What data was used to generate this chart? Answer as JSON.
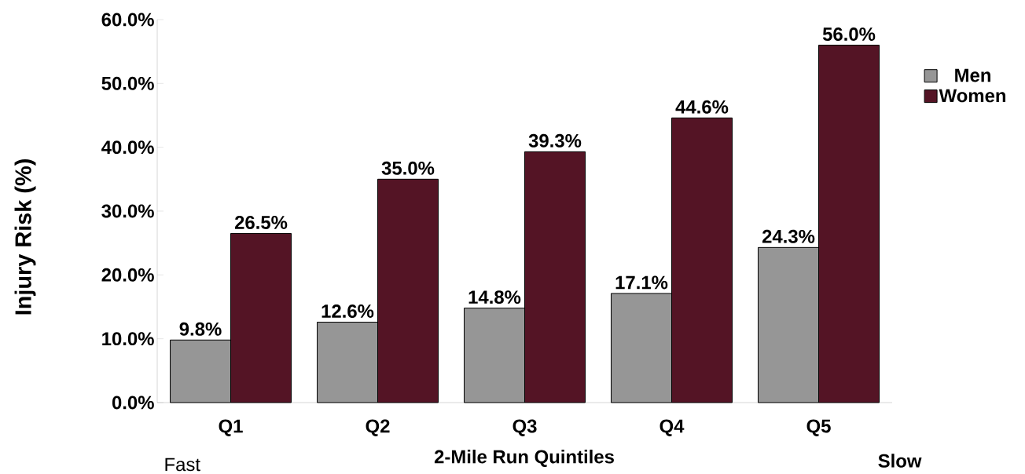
{
  "chart_data": {
    "type": "bar",
    "xlabel": "2-Mile Run Quintiles",
    "ylabel": "Injury Risk (%)",
    "categories": [
      "Q1",
      "Q2",
      "Q3",
      "Q4",
      "Q5"
    ],
    "series": [
      {
        "name": "Men",
        "color": "#969696",
        "values": [
          9.8,
          12.6,
          14.8,
          17.1,
          24.3
        ],
        "value_labels": [
          "9.8%",
          "12.6%",
          "14.8%",
          "17.1%",
          "24.3%"
        ]
      },
      {
        "name": "Women",
        "color": "#541425",
        "values": [
          26.5,
          35.0,
          39.3,
          44.6,
          56.0
        ],
        "value_labels": [
          "26.5%",
          "35.0%",
          "39.3%",
          "44.6%",
          "56.0%"
        ]
      }
    ],
    "ylim": [
      0,
      60
    ],
    "yticks": [
      {
        "value": 0,
        "label": "0.0%"
      },
      {
        "value": 10,
        "label": "10.0%"
      },
      {
        "value": 20,
        "label": "20.0%"
      },
      {
        "value": 30,
        "label": "30.0%"
      },
      {
        "value": 40,
        "label": "40.0%"
      },
      {
        "value": 50,
        "label": "50.0%"
      },
      {
        "value": 60,
        "label": "60.0%"
      }
    ],
    "legend": "right",
    "grid": false,
    "annotations": [
      "Fast",
      "Slow"
    ]
  }
}
